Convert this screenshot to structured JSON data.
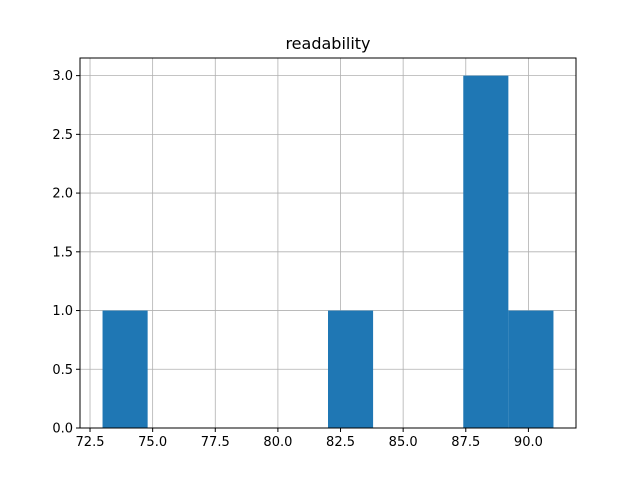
{
  "chart_data": {
    "type": "bar",
    "title": "readability",
    "xlabel": "",
    "ylabel": "",
    "grid": true,
    "bar_color": "#1f77b4",
    "grid_color": "#b0b0b0",
    "xlim": [
      72.1,
      91.9
    ],
    "ylim": [
      0,
      3.15
    ],
    "bins": [
      {
        "x0": 73.0,
        "x1": 74.8,
        "count": 1
      },
      {
        "x0": 74.8,
        "x1": 76.6,
        "count": 0
      },
      {
        "x0": 76.6,
        "x1": 78.4,
        "count": 0
      },
      {
        "x0": 78.4,
        "x1": 80.2,
        "count": 0
      },
      {
        "x0": 80.2,
        "x1": 82.0,
        "count": 0
      },
      {
        "x0": 82.0,
        "x1": 83.8,
        "count": 1
      },
      {
        "x0": 83.8,
        "x1": 85.6,
        "count": 0
      },
      {
        "x0": 85.6,
        "x1": 87.4,
        "count": 0
      },
      {
        "x0": 87.4,
        "x1": 89.2,
        "count": 3
      },
      {
        "x0": 89.2,
        "x1": 91.0,
        "count": 1
      }
    ],
    "xticks": [
      72.5,
      75.0,
      77.5,
      80.0,
      82.5,
      85.0,
      87.5,
      90.0
    ],
    "xtick_labels": [
      "72.5",
      "75.0",
      "77.5",
      "80.0",
      "82.5",
      "85.0",
      "87.5",
      "90.0"
    ],
    "yticks": [
      0.0,
      0.5,
      1.0,
      1.5,
      2.0,
      2.5,
      3.0
    ],
    "ytick_labels": [
      "0.0",
      "0.5",
      "1.0",
      "1.5",
      "2.0",
      "2.5",
      "3.0"
    ]
  }
}
